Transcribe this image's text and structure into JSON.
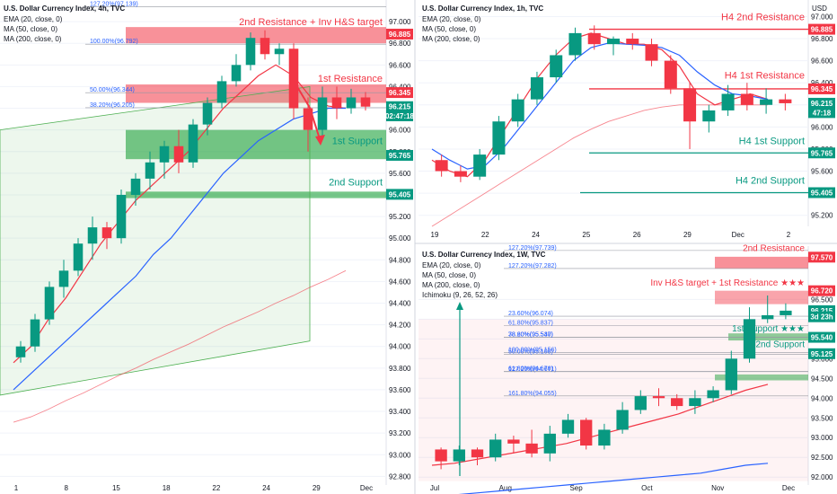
{
  "chart_data": [
    {
      "type": "candlestick",
      "title": "U.S. Dollar Currency Index, 4h, TVC",
      "indicators": [
        "EMA (20, close, 0)",
        "MA (50, close, 0)",
        "MA (200, close, 0)"
      ],
      "x_tick_labels": [
        "1",
        "8",
        "15",
        "18",
        "22",
        "24",
        "29",
        "Dec"
      ],
      "y_tick_labels": [
        "97.000",
        "96.800",
        "96.600",
        "96.400",
        "96.200",
        "96.000",
        "95.800",
        "95.600",
        "95.400",
        "95.200",
        "95.000",
        "94.800",
        "94.600",
        "94.400",
        "94.200",
        "94.000",
        "93.800",
        "93.600",
        "93.400",
        "93.200",
        "93.000",
        "92.800"
      ],
      "ylim": [
        92.72,
        97.2
      ],
      "price_tags": [
        {
          "text": "96.885",
          "value": 96.885,
          "color": "#f23645"
        },
        {
          "text": "96.345",
          "value": 96.345,
          "color": "#f23645"
        },
        {
          "text": "96.215",
          "value": 96.215,
          "color": "#089981"
        },
        {
          "text": "02:47:18",
          "value": 96.13,
          "color": "#089981"
        },
        {
          "text": "95.765",
          "value": 95.765,
          "color": "#089981"
        },
        {
          "text": "95.405",
          "value": 95.405,
          "color": "#089981"
        }
      ],
      "annotations": [
        {
          "text": "2nd Resistance + Inv H&S target",
          "value": 96.95,
          "color": "#f23645"
        },
        {
          "text": "1st Resistance",
          "value": 96.43,
          "color": "#f23645"
        },
        {
          "text": "1st Support",
          "value": 95.85,
          "color": "#089981"
        },
        {
          "text": "2nd Support",
          "value": 95.47,
          "color": "#089981"
        }
      ],
      "fib_labels": [
        {
          "text": "127.20%(97.139)",
          "value": 97.139
        },
        {
          "text": "100.00%(96.792)",
          "value": 96.792
        },
        {
          "text": "50.00%(96.344)",
          "value": 96.344
        },
        {
          "text": "38.20%(96.205)",
          "value": 96.205
        }
      ],
      "zones": [
        {
          "low": 96.8,
          "high": 96.95,
          "color": "red"
        },
        {
          "low": 96.25,
          "high": 96.42,
          "color": "red"
        },
        {
          "low": 95.73,
          "high": 96.0,
          "color": "green"
        },
        {
          "low": 95.37,
          "high": 95.43,
          "color": "green"
        }
      ],
      "series": [
        {
          "name": "EMA (20, close, 0)",
          "color": "#f23645",
          "values": [
            93.85,
            94.0,
            94.25,
            94.45,
            94.7,
            94.95,
            95.15,
            95.35,
            95.5,
            95.65,
            95.8,
            96.0,
            96.2,
            96.35,
            96.5,
            96.6,
            96.5,
            96.3,
            96.22,
            96.2
          ]
        },
        {
          "name": "MA (50, close, 0)",
          "color": "#2962ff",
          "values": [
            93.6,
            93.75,
            93.9,
            94.05,
            94.2,
            94.35,
            94.5,
            94.65,
            94.85,
            95.0,
            95.2,
            95.4,
            95.6,
            95.75,
            95.9,
            96.0,
            96.1,
            96.15,
            96.2,
            96.2
          ]
        },
        {
          "name": "MA (200, close, 0)",
          "color": "#f23645",
          "values": [
            93.3,
            93.35,
            93.42,
            93.5,
            93.57,
            93.65,
            93.73,
            93.8,
            93.88,
            93.95,
            94.02,
            94.1,
            94.18,
            94.25,
            94.32,
            94.4,
            94.47,
            94.55,
            94.62,
            94.7
          ]
        }
      ],
      "candles": [
        [
          93.9,
          94.05,
          93.85,
          94.0
        ],
        [
          94.0,
          94.3,
          93.95,
          94.25
        ],
        [
          94.25,
          94.6,
          94.2,
          94.55
        ],
        [
          94.55,
          94.8,
          94.45,
          94.7
        ],
        [
          94.7,
          95.0,
          94.65,
          94.95
        ],
        [
          94.95,
          95.2,
          94.8,
          95.1
        ],
        [
          95.1,
          95.15,
          94.9,
          95.0
        ],
        [
          95.0,
          95.45,
          94.95,
          95.4
        ],
        [
          95.4,
          95.6,
          95.3,
          95.55
        ],
        [
          95.55,
          95.8,
          95.45,
          95.7
        ],
        [
          95.7,
          95.9,
          95.55,
          95.85
        ],
        [
          95.85,
          96.0,
          95.6,
          95.7
        ],
        [
          95.7,
          96.1,
          95.65,
          96.05
        ],
        [
          96.05,
          96.3,
          95.95,
          96.25
        ],
        [
          96.25,
          96.5,
          96.2,
          96.45
        ],
        [
          96.45,
          96.7,
          96.4,
          96.6
        ],
        [
          96.6,
          96.9,
          96.55,
          96.85
        ],
        [
          96.85,
          96.92,
          96.65,
          96.7
        ],
        [
          96.7,
          96.8,
          96.6,
          96.75
        ],
        [
          96.75,
          96.8,
          96.1,
          96.2
        ],
        [
          96.2,
          96.3,
          95.8,
          96.0
        ],
        [
          96.0,
          96.4,
          95.95,
          96.3
        ],
        [
          96.3,
          96.4,
          96.1,
          96.2
        ],
        [
          96.2,
          96.38,
          96.15,
          96.3
        ],
        [
          96.3,
          96.35,
          96.18,
          96.215
        ]
      ]
    },
    {
      "type": "candlestick",
      "title": "U.S. Dollar Currency Index, 1h, TVC",
      "indicators": [
        "EMA (20, close, 0)",
        "MA (50, close, 0)",
        "MA (200, close, 0)"
      ],
      "currency": "USD",
      "x_tick_labels": [
        "19",
        "22",
        "24",
        "25",
        "26",
        "29",
        "Dec",
        "2"
      ],
      "y_tick_labels": [
        "97.000",
        "96.800",
        "96.600",
        "96.400",
        "96.200",
        "96.000",
        "95.800",
        "95.600",
        "95.400",
        "95.200"
      ],
      "ylim": [
        95.1,
        97.15
      ],
      "price_tags": [
        {
          "text": "96.885",
          "value": 96.885,
          "color": "#f23645"
        },
        {
          "text": "96.345",
          "value": 96.345,
          "color": "#f23645"
        },
        {
          "text": "96.215",
          "value": 96.215,
          "color": "#089981"
        },
        {
          "text": "47:18",
          "value": 96.13,
          "color": "#089981"
        },
        {
          "text": "95.765",
          "value": 95.765,
          "color": "#089981"
        },
        {
          "text": "95.405",
          "value": 95.405,
          "color": "#089981"
        }
      ],
      "annotations": [
        {
          "text": "H4 2nd Resistance",
          "value": 96.95,
          "color": "#f23645"
        },
        {
          "text": "H4 1st Resistance",
          "value": 96.42,
          "color": "#f23645"
        },
        {
          "text": "H4 1st Support",
          "value": 95.83,
          "color": "#089981"
        },
        {
          "text": "H4 2nd Support",
          "value": 95.47,
          "color": "#089981"
        }
      ],
      "levels": [
        96.885,
        96.345,
        95.765,
        95.405
      ],
      "series": [
        {
          "name": "EMA (20, close, 0)",
          "color": "#f23645",
          "values": [
            95.7,
            95.6,
            95.55,
            95.7,
            95.95,
            96.2,
            96.45,
            96.65,
            96.8,
            96.85,
            96.8,
            96.75,
            96.75,
            96.7,
            96.55,
            96.3,
            96.2,
            96.25,
            96.3,
            96.25
          ]
        },
        {
          "name": "MA (50, close, 0)",
          "color": "#2962ff",
          "values": [
            95.8,
            95.7,
            95.62,
            95.65,
            95.8,
            96.0,
            96.2,
            96.4,
            96.6,
            96.72,
            96.76,
            96.75,
            96.74,
            96.72,
            96.65,
            96.5,
            96.38,
            96.3,
            96.28,
            96.25
          ]
        },
        {
          "name": "MA (200, close, 0)",
          "color": "#f23645",
          "values": [
            95.1,
            95.2,
            95.3,
            95.4,
            95.5,
            95.6,
            95.7,
            95.8,
            95.9,
            95.98,
            96.05,
            96.1,
            96.15,
            96.18,
            96.2,
            96.2,
            96.2,
            96.2,
            96.2,
            96.2
          ]
        }
      ],
      "candles": [
        [
          95.7,
          95.75,
          95.55,
          95.6
        ],
        [
          95.6,
          95.65,
          95.5,
          95.55
        ],
        [
          95.55,
          95.8,
          95.52,
          95.75
        ],
        [
          95.75,
          96.1,
          95.7,
          96.05
        ],
        [
          96.05,
          96.3,
          96.0,
          96.25
        ],
        [
          96.25,
          96.5,
          96.2,
          96.45
        ],
        [
          96.45,
          96.7,
          96.4,
          96.65
        ],
        [
          96.65,
          96.9,
          96.6,
          96.85
        ],
        [
          96.85,
          96.92,
          96.7,
          96.75
        ],
        [
          96.75,
          96.82,
          96.65,
          96.8
        ],
        [
          96.8,
          96.85,
          96.7,
          96.75
        ],
        [
          96.75,
          96.8,
          96.55,
          96.6
        ],
        [
          96.6,
          96.65,
          96.3,
          96.35
        ],
        [
          96.35,
          96.4,
          95.8,
          96.05
        ],
        [
          96.05,
          96.2,
          95.95,
          96.15
        ],
        [
          96.15,
          96.38,
          96.1,
          96.3
        ],
        [
          96.3,
          96.4,
          96.15,
          96.2
        ],
        [
          96.2,
          96.35,
          96.12,
          96.25
        ],
        [
          96.25,
          96.3,
          96.15,
          96.215
        ]
      ]
    },
    {
      "type": "candlestick",
      "title": "U.S. Dollar Currency Index, 1W, TVC",
      "indicators": [
        "EMA (20, close, 0)",
        "MA (50, close, 0)",
        "MA (200, close, 0)",
        "Ichimoku (9, 26, 52, 26)"
      ],
      "x_tick_labels": [
        "Jul",
        "Aug",
        "Sep",
        "Oct",
        "Nov",
        "Dec"
      ],
      "y_tick_labels": [
        "96.500",
        "96.000",
        "95.500",
        "95.000",
        "94.500",
        "94.000",
        "93.500",
        "93.000",
        "92.500",
        "92.000"
      ],
      "ylim": [
        91.8,
        97.85
      ],
      "price_tags": [
        {
          "text": "97.570",
          "value": 97.57,
          "color": "#f23645"
        },
        {
          "text": "96.720",
          "value": 96.72,
          "color": "#f23645"
        },
        {
          "text": "96.215",
          "value": 96.215,
          "color": "#089981"
        },
        {
          "text": "3d 23h",
          "value": 96.06,
          "color": "#089981"
        },
        {
          "text": "95.540",
          "value": 95.54,
          "color": "#089981"
        },
        {
          "text": "95.125",
          "value": 95.125,
          "color": "#089981"
        }
      ],
      "annotations": [
        {
          "text": "2nd Resistance",
          "value": 97.68,
          "color": "#f23645"
        },
        {
          "text": "Inv H&S target + 1st Resistance ★★★",
          "value": 96.8,
          "color": "#f23645"
        },
        {
          "text": "1st Support ★★★",
          "value": 95.64,
          "color": "#089981"
        },
        {
          "text": "2nd Support",
          "value": 95.25,
          "color": "#089981"
        }
      ],
      "fib_labels": [
        {
          "text": "127.20%(97.739)",
          "value": 97.739
        },
        {
          "text": "127.20%(97.282)",
          "value": 97.282
        },
        {
          "text": "23.60%(96.074)",
          "value": 96.074
        },
        {
          "text": "61.80%(95.837)",
          "value": 95.837
        },
        {
          "text": "78.60%(95.537)",
          "value": 95.537
        },
        {
          "text": "38.20%(95.540)",
          "value": 95.54
        },
        {
          "text": "100.00%(95.156)",
          "value": 95.156
        },
        {
          "text": "50.00%(95.108)",
          "value": 95.108
        },
        {
          "text": "127.20%(94.671)",
          "value": 94.671
        },
        {
          "text": "61.80%(94.676)",
          "value": 94.676
        },
        {
          "text": "161.80%(94.055)",
          "value": 94.055
        }
      ],
      "series": [
        {
          "name": "EMA (20, close, 0)",
          "color": "#f23645",
          "values": [
            92.3,
            92.35,
            92.45,
            92.55,
            92.65,
            92.75,
            92.85,
            93.0,
            93.15,
            93.3,
            93.45,
            93.6,
            93.8,
            94.0,
            94.2,
            94.35
          ]
        },
        {
          "name": "MA (50, close, 0)",
          "color": "#2962ff",
          "values": [
            91.5,
            91.55,
            91.6,
            91.65,
            91.7,
            91.75,
            91.8,
            91.85,
            91.9,
            91.95,
            92.0,
            92.05,
            92.1,
            92.2,
            92.3,
            92.35
          ]
        }
      ],
      "candles": [
        [
          92.7,
          92.75,
          92.2,
          92.4
        ],
        [
          92.4,
          92.8,
          92.3,
          92.7
        ],
        [
          92.7,
          92.75,
          92.3,
          92.5
        ],
        [
          92.5,
          93.1,
          92.4,
          92.95
        ],
        [
          92.95,
          93.05,
          92.6,
          92.85
        ],
        [
          92.85,
          93.2,
          92.5,
          92.6
        ],
        [
          92.6,
          93.3,
          92.4,
          93.1
        ],
        [
          93.1,
          93.6,
          93.0,
          93.45
        ],
        [
          93.45,
          93.5,
          92.7,
          92.8
        ],
        [
          92.8,
          93.35,
          92.7,
          93.2
        ],
        [
          93.2,
          93.9,
          93.1,
          93.7
        ],
        [
          93.7,
          94.2,
          93.6,
          94.05
        ],
        [
          94.05,
          94.25,
          93.8,
          94.0
        ],
        [
          94.0,
          94.1,
          93.7,
          93.8
        ],
        [
          93.8,
          94.2,
          93.6,
          94.0
        ],
        [
          94.0,
          94.3,
          93.9,
          94.2
        ],
        [
          94.2,
          95.2,
          94.1,
          95.0
        ],
        [
          95.0,
          96.3,
          94.9,
          96.0
        ],
        [
          96.0,
          96.6,
          95.9,
          96.1
        ],
        [
          96.1,
          96.4,
          96.0,
          96.215
        ]
      ]
    }
  ]
}
